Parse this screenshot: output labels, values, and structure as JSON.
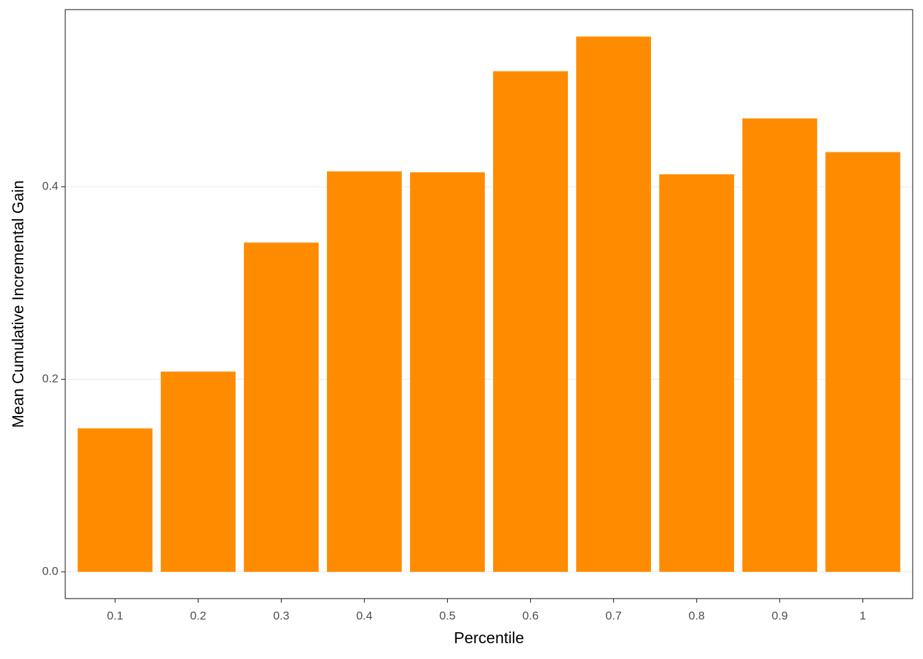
{
  "chart_data": {
    "type": "bar",
    "x_label": "Percentile",
    "y_label": "Mean Cumulative Incremental Gain",
    "categories": [
      "0.1",
      "0.2",
      "0.3",
      "0.4",
      "0.5",
      "0.6",
      "0.7",
      "0.8",
      "0.9",
      "1"
    ],
    "values": [
      0.149,
      0.208,
      0.342,
      0.416,
      0.415,
      0.52,
      0.556,
      0.413,
      0.471,
      0.436
    ],
    "color": "#ff8c00",
    "ylim": [
      -0.0278,
      0.584
    ],
    "yticks": [
      {
        "value": 0,
        "label": "0.0"
      },
      {
        "value": 0.2,
        "label": "0.2"
      },
      {
        "value": 0.4,
        "label": "0.4"
      }
    ],
    "grid": true
  }
}
